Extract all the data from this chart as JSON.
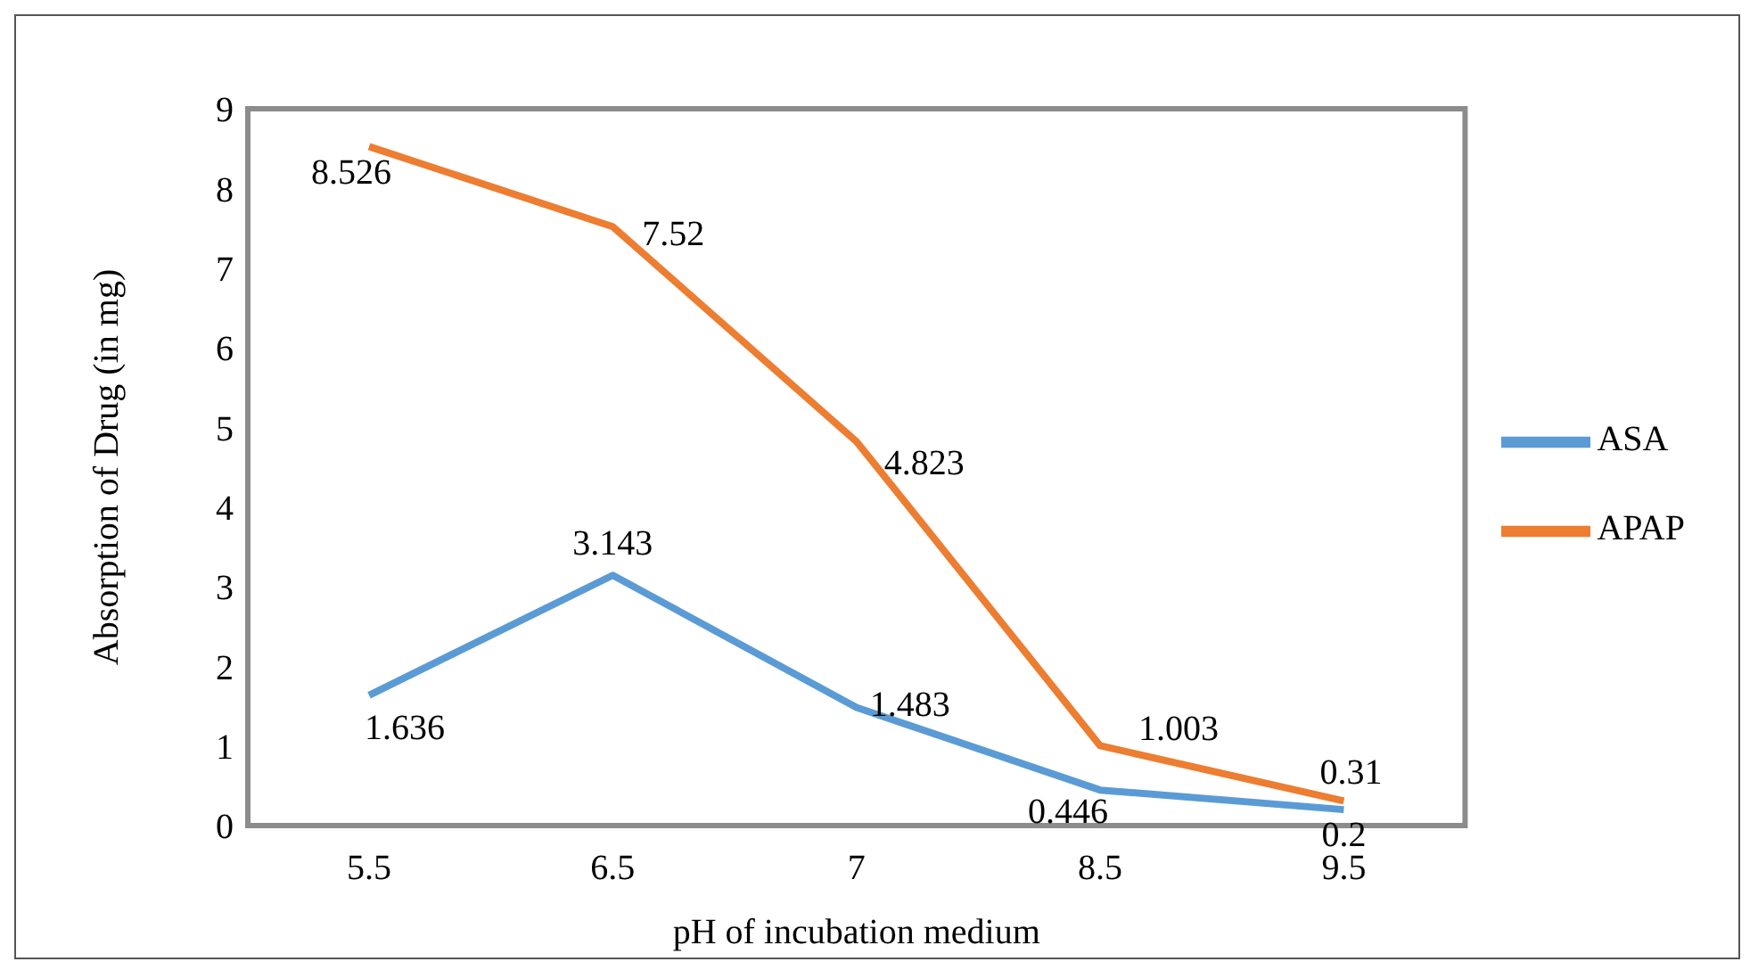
{
  "chart_data": {
    "type": "line",
    "xlabel": "pH of incubation medium",
    "ylabel": "Absorption of Drug (in mg)",
    "categories": [
      "5.5",
      "6.5",
      "7",
      "8.5",
      "9.5"
    ],
    "series": [
      {
        "name": "ASA",
        "color": "#5b9bd5",
        "values": [
          1.636,
          3.143,
          1.483,
          0.446,
          0.2
        ]
      },
      {
        "name": "APAP",
        "color": "#ed7d31",
        "values": [
          8.526,
          7.52,
          4.823,
          1.003,
          0.31
        ]
      }
    ],
    "ylim": [
      0,
      9
    ],
    "yticks": [
      0,
      1,
      2,
      3,
      4,
      5,
      6,
      7,
      8,
      9
    ],
    "grid": false,
    "legend": "right",
    "marker": "none",
    "line_style": "solid",
    "data_labels": true
  }
}
